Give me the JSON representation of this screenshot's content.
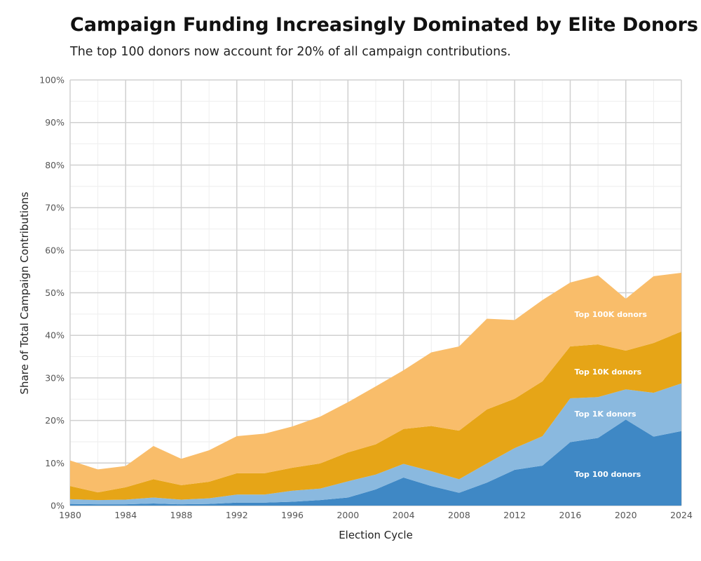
{
  "header": {
    "title": "Campaign Funding Increasingly Dominated by Elite Donors",
    "subtitle": "The top 100 donors now account for 20% of all campaign contributions."
  },
  "chart_data": {
    "type": "area",
    "stacked": true,
    "title": "Campaign Funding Increasingly Dominated by Elite Donors",
    "subtitle": "The top 100 donors now account for 20% of all campaign contributions.",
    "xlabel": "Election Cycle",
    "ylabel": "Share of Total Campaign Contributions",
    "x": [
      1980,
      1982,
      1984,
      1986,
      1988,
      1990,
      1992,
      1994,
      1996,
      1998,
      2000,
      2002,
      2004,
      2006,
      2008,
      2010,
      2012,
      2014,
      2016,
      2018,
      2020,
      2022,
      2024
    ],
    "xlim": [
      1980,
      2024
    ],
    "ylim": [
      0,
      100
    ],
    "x_ticks": [
      1980,
      1984,
      1988,
      1992,
      1996,
      2000,
      2004,
      2008,
      2012,
      2016,
      2020,
      2024
    ],
    "y_ticks": [
      0,
      10,
      20,
      30,
      40,
      50,
      60,
      70,
      80,
      90,
      100
    ],
    "y_tick_labels": [
      "0%",
      "10%",
      "20%",
      "30%",
      "40%",
      "50%",
      "60%",
      "70%",
      "80%",
      "90%",
      "100%"
    ],
    "grid": true,
    "series": [
      {
        "name": "Top 100 donors",
        "label": "Top 100 donors",
        "color": "#3f88c5",
        "cumulative": [
          0.4,
          0.3,
          0.3,
          0.5,
          0.3,
          0.4,
          0.7,
          0.7,
          0.9,
          1.3,
          1.9,
          3.8,
          6.6,
          4.6,
          3.0,
          5.4,
          8.4,
          9.4,
          14.9,
          15.9,
          20.2,
          16.2,
          17.5
        ]
      },
      {
        "name": "Top 1K donors",
        "label": "Top 1K donors",
        "color": "#8ab9df",
        "cumulative": [
          1.5,
          1.3,
          1.4,
          1.9,
          1.4,
          1.7,
          2.6,
          2.6,
          3.5,
          4.0,
          5.7,
          7.3,
          9.8,
          8.1,
          6.2,
          9.9,
          13.5,
          16.3,
          25.2,
          25.5,
          27.3,
          26.5,
          28.7
        ]
      },
      {
        "name": "Top 10K donors",
        "label": "Top 10K donors",
        "color": "#e6a517",
        "cumulative": [
          4.6,
          3.1,
          4.3,
          6.2,
          4.8,
          5.6,
          7.6,
          7.6,
          8.9,
          9.9,
          12.5,
          14.4,
          18.0,
          18.7,
          17.6,
          22.6,
          25.1,
          29.2,
          37.4,
          37.9,
          36.4,
          38.2,
          40.9
        ]
      },
      {
        "name": "Top 100K donors",
        "label": "Top 100K donors",
        "color": "#f9bd6a",
        "cumulative": [
          10.6,
          8.5,
          9.3,
          14.0,
          11.0,
          13.0,
          16.3,
          16.9,
          18.6,
          20.9,
          24.3,
          28.0,
          31.8,
          36.0,
          37.4,
          43.9,
          43.6,
          48.3,
          52.4,
          54.1,
          48.6,
          53.9,
          54.7
        ]
      }
    ],
    "label_positions": {
      "Top 100 donors": [
        2016,
        7.4
      ],
      "Top 1K donors": [
        2016,
        21.6
      ],
      "Top 10K donors": [
        2016,
        31.5
      ],
      "Top 100K donors": [
        2016,
        45.0
      ]
    }
  }
}
